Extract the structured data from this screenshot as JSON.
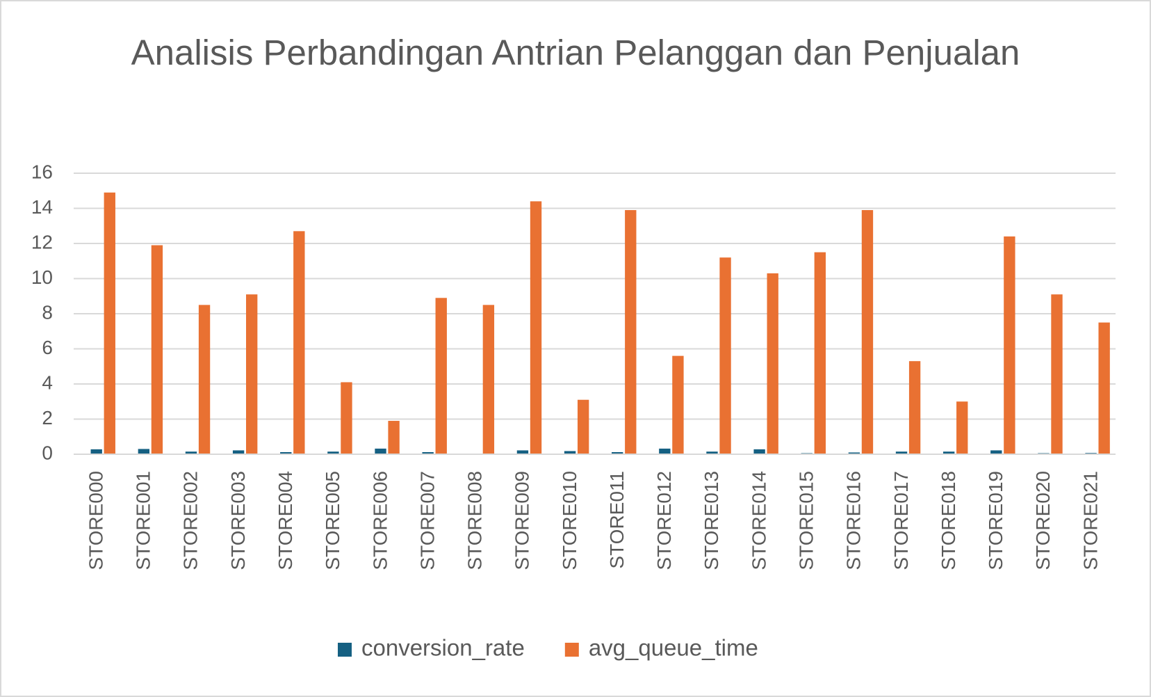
{
  "chart_data": {
    "type": "bar",
    "title": "Analisis Perbandingan Antrian Pelanggan dan Penjualan",
    "categories": [
      "STORE000",
      "STORE001",
      "STORE002",
      "STORE003",
      "STORE004",
      "STORE005",
      "STORE006",
      "STORE007",
      "STORE008",
      "STORE009",
      "STORE010",
      "STORE011",
      "STORE012",
      "STORE013",
      "STORE014",
      "STORE015",
      "STORE016",
      "STORE017",
      "STORE018",
      "STORE019",
      "STORE020",
      "STORE021"
    ],
    "series": [
      {
        "name": "conversion_rate",
        "color": "#156082",
        "values": [
          0.28,
          0.3,
          0.15,
          0.22,
          0.12,
          0.15,
          0.32,
          0.12,
          0.02,
          0.22,
          0.18,
          0.12,
          0.32,
          0.15,
          0.28,
          0.06,
          0.1,
          0.15,
          0.15,
          0.22,
          0.06,
          0.07
        ]
      },
      {
        "name": "avg_queue_time",
        "color": "#e97132",
        "values": [
          14.9,
          11.9,
          8.5,
          9.1,
          12.7,
          4.1,
          1.9,
          8.9,
          8.5,
          14.4,
          3.1,
          13.9,
          5.6,
          11.2,
          10.3,
          11.5,
          13.9,
          5.3,
          3.0,
          12.4,
          9.1,
          7.5
        ]
      }
    ],
    "ylim": [
      0,
      16
    ],
    "yticks": [
      0,
      2,
      4,
      6,
      8,
      10,
      12,
      14,
      16
    ],
    "grid": true,
    "legend": "bottom"
  }
}
